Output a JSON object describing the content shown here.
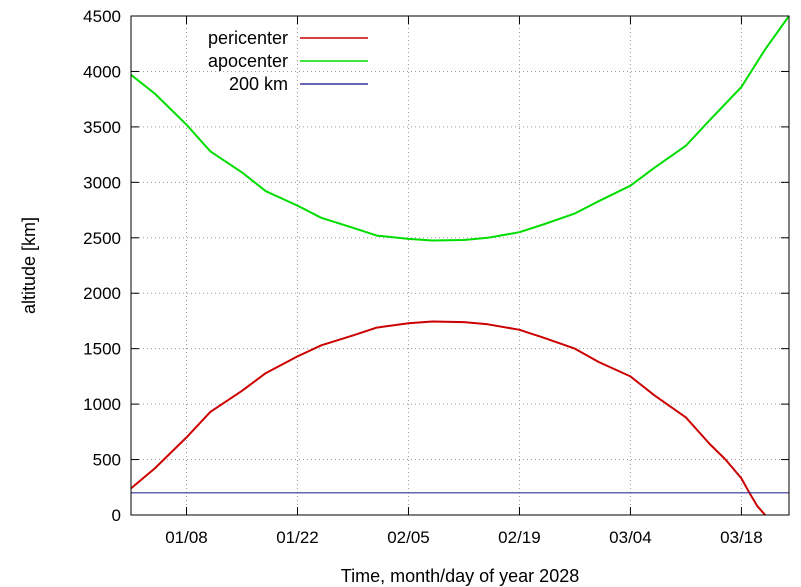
{
  "chart_data": {
    "type": "line",
    "xlabel": "Time, month/day of year 2028",
    "ylabel": "altitude [km]",
    "xlim": [
      "2028-01-01",
      "2028-03-24"
    ],
    "ylim": [
      0,
      4500
    ],
    "grid": true,
    "legend_position": "top-left",
    "x_ticks": [
      {
        "date": "2028-01-08",
        "label": "01/08"
      },
      {
        "date": "2028-01-22",
        "label": "01/22"
      },
      {
        "date": "2028-02-05",
        "label": "02/05"
      },
      {
        "date": "2028-02-19",
        "label": "02/19"
      },
      {
        "date": "2028-03-04",
        "label": "03/04"
      },
      {
        "date": "2028-03-18",
        "label": "03/18"
      }
    ],
    "y_ticks": [
      0,
      500,
      1000,
      1500,
      2000,
      2500,
      3000,
      3500,
      4000,
      4500
    ],
    "series": [
      {
        "name": "pericenter",
        "color": "#cc0000",
        "x": [
          "2028-01-01",
          "2028-01-04",
          "2028-01-08",
          "2028-01-11",
          "2028-01-15",
          "2028-01-18",
          "2028-01-22",
          "2028-01-25",
          "2028-01-29",
          "2028-02-01",
          "2028-02-05",
          "2028-02-08",
          "2028-02-12",
          "2028-02-15",
          "2028-02-19",
          "2028-02-22",
          "2028-02-26",
          "2028-02-29",
          "2028-03-04",
          "2028-03-07",
          "2028-03-11",
          "2028-03-14",
          "2028-03-16",
          "2028-03-18",
          "2028-03-19",
          "2028-03-20",
          "2028-03-21"
        ],
        "values": [
          240,
          420,
          700,
          930,
          1120,
          1280,
          1430,
          1530,
          1620,
          1690,
          1730,
          1745,
          1740,
          1720,
          1670,
          1600,
          1500,
          1380,
          1250,
          1080,
          880,
          640,
          500,
          330,
          200,
          80,
          0
        ]
      },
      {
        "name": "apocenter",
        "color": "#00dd00",
        "x": [
          "2028-01-01",
          "2028-01-04",
          "2028-01-08",
          "2028-01-11",
          "2028-01-15",
          "2028-01-18",
          "2028-01-22",
          "2028-01-25",
          "2028-01-29",
          "2028-02-01",
          "2028-02-05",
          "2028-02-08",
          "2028-02-12",
          "2028-02-15",
          "2028-02-19",
          "2028-02-22",
          "2028-02-26",
          "2028-02-29",
          "2028-03-04",
          "2028-03-07",
          "2028-03-11",
          "2028-03-14",
          "2028-03-18",
          "2028-03-21",
          "2028-03-24"
        ],
        "values": [
          3970,
          3800,
          3520,
          3280,
          3090,
          2920,
          2790,
          2680,
          2590,
          2520,
          2490,
          2475,
          2480,
          2500,
          2550,
          2620,
          2720,
          2830,
          2970,
          3130,
          3330,
          3560,
          3860,
          4200,
          4500
        ]
      },
      {
        "name": "200 km",
        "color": "#333399",
        "x": [
          "2028-01-01",
          "2028-03-24"
        ],
        "values": [
          200,
          200
        ]
      }
    ]
  }
}
